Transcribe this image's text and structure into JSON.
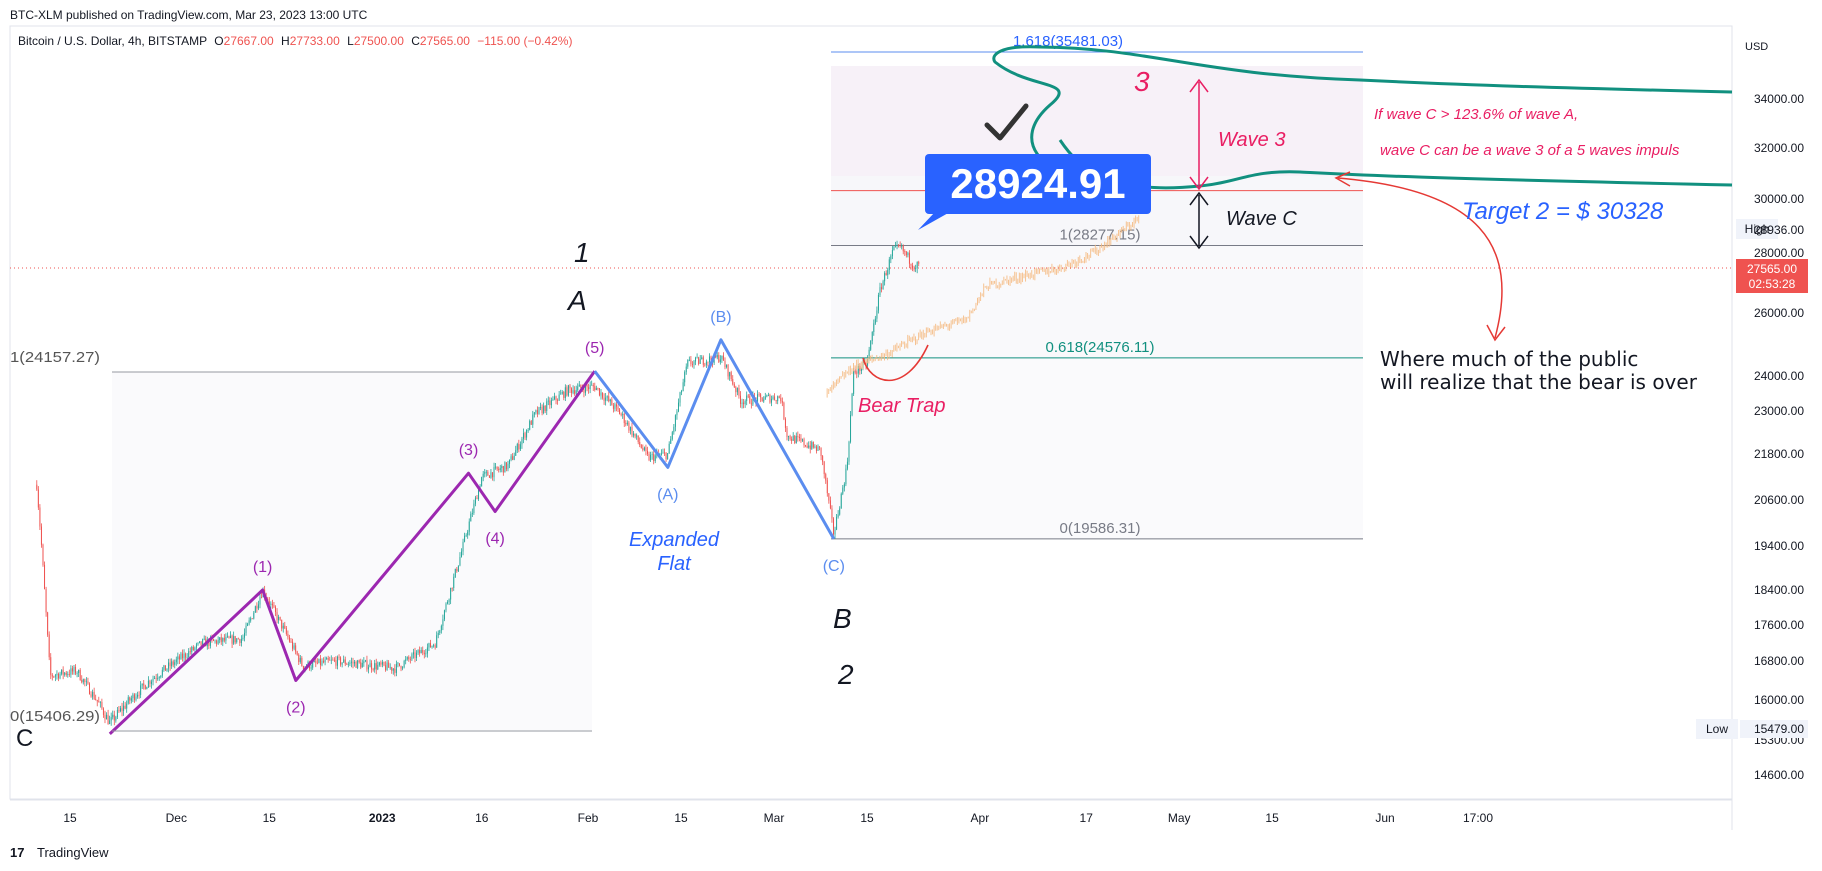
{
  "publisher_line": "BTC-XLM published on TradingView.com, Mar 23, 2023 13:00 UTC",
  "symbol_line": {
    "name": "Bitcoin / U.S. Dollar, 4h, BITSTAMP",
    "open_label": "O",
    "open": "27667.00",
    "high_label": "H",
    "high": "27733.00",
    "low_label": "L",
    "low": "27500.00",
    "close_label": "C",
    "close": "27565.00",
    "change": "−115.00 (−0.42%)"
  },
  "footer_brand": "TradingView",
  "colors": {
    "up": "#26a69a",
    "down": "#ef5350",
    "purple": "#9c27b0",
    "blue": "#5b8def",
    "teal": "#11907f",
    "crimson": "#e91e63",
    "red": "#e53935"
  },
  "chart_data": {
    "type": "candlestick",
    "symbol": "Bitcoin / U.S. Dollar, 4h, BITSTAMP",
    "y_axis": {
      "unit_label": "USD",
      "ticks": [
        "14600.00",
        "15300.00",
        "16000.00",
        "16800.00",
        "17600.00",
        "18400.00",
        "19400.00",
        "20600.00",
        "21800.00",
        "23000.00",
        "24000.00",
        "26000.00",
        "28000.00",
        "30000.00",
        "32000.00",
        "34000.00"
      ]
    },
    "x_axis": {
      "ticks": [
        "15",
        "Dec",
        "15",
        "2023",
        "16",
        "Feb",
        "15",
        "Mar",
        "15",
        "Apr",
        "17",
        "May",
        "15",
        "Jun",
        "17:00"
      ]
    },
    "price_labels": {
      "high_label": "High",
      "high_value": "28936.00",
      "last_value": "27565.00",
      "countdown": "02:53:28",
      "low_label": "Low",
      "low_value": "15479.00"
    },
    "price_path": [
      [
        "2022-11-10",
        21000
      ],
      [
        "2022-11-12",
        16500
      ],
      [
        "2022-11-16",
        16600
      ],
      [
        "2022-11-21",
        15600
      ],
      [
        "2022-11-27",
        16400
      ],
      [
        "2022-12-05",
        17200
      ],
      [
        "2022-12-11",
        17300
      ],
      [
        "2022-12-14",
        18400
      ],
      [
        "2022-12-20",
        16700
      ],
      [
        "2022-12-25",
        16800
      ],
      [
        "2023-01-03",
        16650
      ],
      [
        "2023-01-09",
        17200
      ],
      [
        "2023-01-13",
        19300
      ],
      [
        "2023-01-16",
        21200
      ],
      [
        "2023-01-20",
        21500
      ],
      [
        "2023-01-24",
        22900
      ],
      [
        "2023-01-29",
        23600
      ],
      [
        "2023-02-02",
        23700
      ],
      [
        "2023-02-06",
        22900
      ],
      [
        "2023-02-10",
        21700
      ],
      [
        "2023-02-13",
        21800
      ],
      [
        "2023-02-16",
        24400
      ],
      [
        "2023-02-21",
        24600
      ],
      [
        "2023-02-24",
        23300
      ],
      [
        "2023-03-02",
        23400
      ],
      [
        "2023-03-03",
        22300
      ],
      [
        "2023-03-08",
        21900
      ],
      [
        "2023-03-10",
        19700
      ],
      [
        "2023-03-12",
        21500
      ],
      [
        "2023-03-13",
        24100
      ],
      [
        "2023-03-15",
        24400
      ],
      [
        "2023-03-17",
        26800
      ],
      [
        "2023-03-19",
        28100
      ],
      [
        "2023-03-20",
        28200
      ],
      [
        "2023-03-22",
        27600
      ],
      [
        "2023-03-23",
        27565
      ]
    ],
    "projection_path": [
      [
        "2023-03-09",
        23500
      ],
      [
        "2023-03-13",
        24300
      ],
      [
        "2023-03-18",
        24700
      ],
      [
        "2023-03-24",
        25400
      ],
      [
        "2023-03-30",
        25800
      ],
      [
        "2023-04-02",
        26900
      ],
      [
        "2023-04-07",
        27200
      ],
      [
        "2023-04-13",
        27500
      ],
      [
        "2023-04-18",
        28000
      ],
      [
        "2023-04-25",
        29300
      ]
    ],
    "fib_levels": [
      {
        "label": "1.618(35481.03)",
        "price": 35481.03
      },
      {
        "label": "",
        "price": 30328
      },
      {
        "label": "1(28277.15)",
        "price": 28277.15
      },
      {
        "label": "0.618(24576.11)",
        "price": 24576.11
      },
      {
        "label": "0(19586.31)",
        "price": 19586.31
      }
    ],
    "left_fib_labels": [
      {
        "label": "1(24157.27)",
        "price": 24157.27
      },
      {
        "label": "0(15406.29)",
        "price": 15406.29
      }
    ],
    "impulse_wave": [
      {
        "date": "2022-11-21",
        "price": 15406,
        "label": ""
      },
      {
        "date": "2022-12-14",
        "price": 18400,
        "label": "(1)"
      },
      {
        "date": "2022-12-19",
        "price": 16400,
        "label": "(2)"
      },
      {
        "date": "2023-01-14",
        "price": 21300,
        "label": "(3)"
      },
      {
        "date": "2023-01-18",
        "price": 20300,
        "label": "(4)"
      },
      {
        "date": "2023-02-02",
        "price": 24157,
        "label": "(5)"
      }
    ],
    "correction_wave": [
      {
        "date": "2023-02-02",
        "price": 24157,
        "label": ""
      },
      {
        "date": "2023-02-13",
        "price": 21450,
        "label": "(A)"
      },
      {
        "date": "2023-02-21",
        "price": 25150,
        "label": "(B)"
      },
      {
        "date": "2023-03-10",
        "price": 19586,
        "label": "(C)"
      }
    ],
    "annotations": {
      "one": "1",
      "a": "A",
      "b": "B",
      "two": "2",
      "c": "C",
      "three": "3",
      "expanded_flat": [
        "Expanded",
        "Flat"
      ],
      "bear_trap": "Bear Trap",
      "wave3": "Wave 3",
      "wavec": "Wave C",
      "target2": "Target 2 = $ 30328",
      "if_wave": [
        "If wave C > 123.6%  of wave A,",
        "wave C can be a wave 3 of a 5 waves impuls"
      ],
      "public": [
        "Where much of the public",
        "will realize that the bear is over"
      ],
      "callout": "28924.91"
    }
  }
}
